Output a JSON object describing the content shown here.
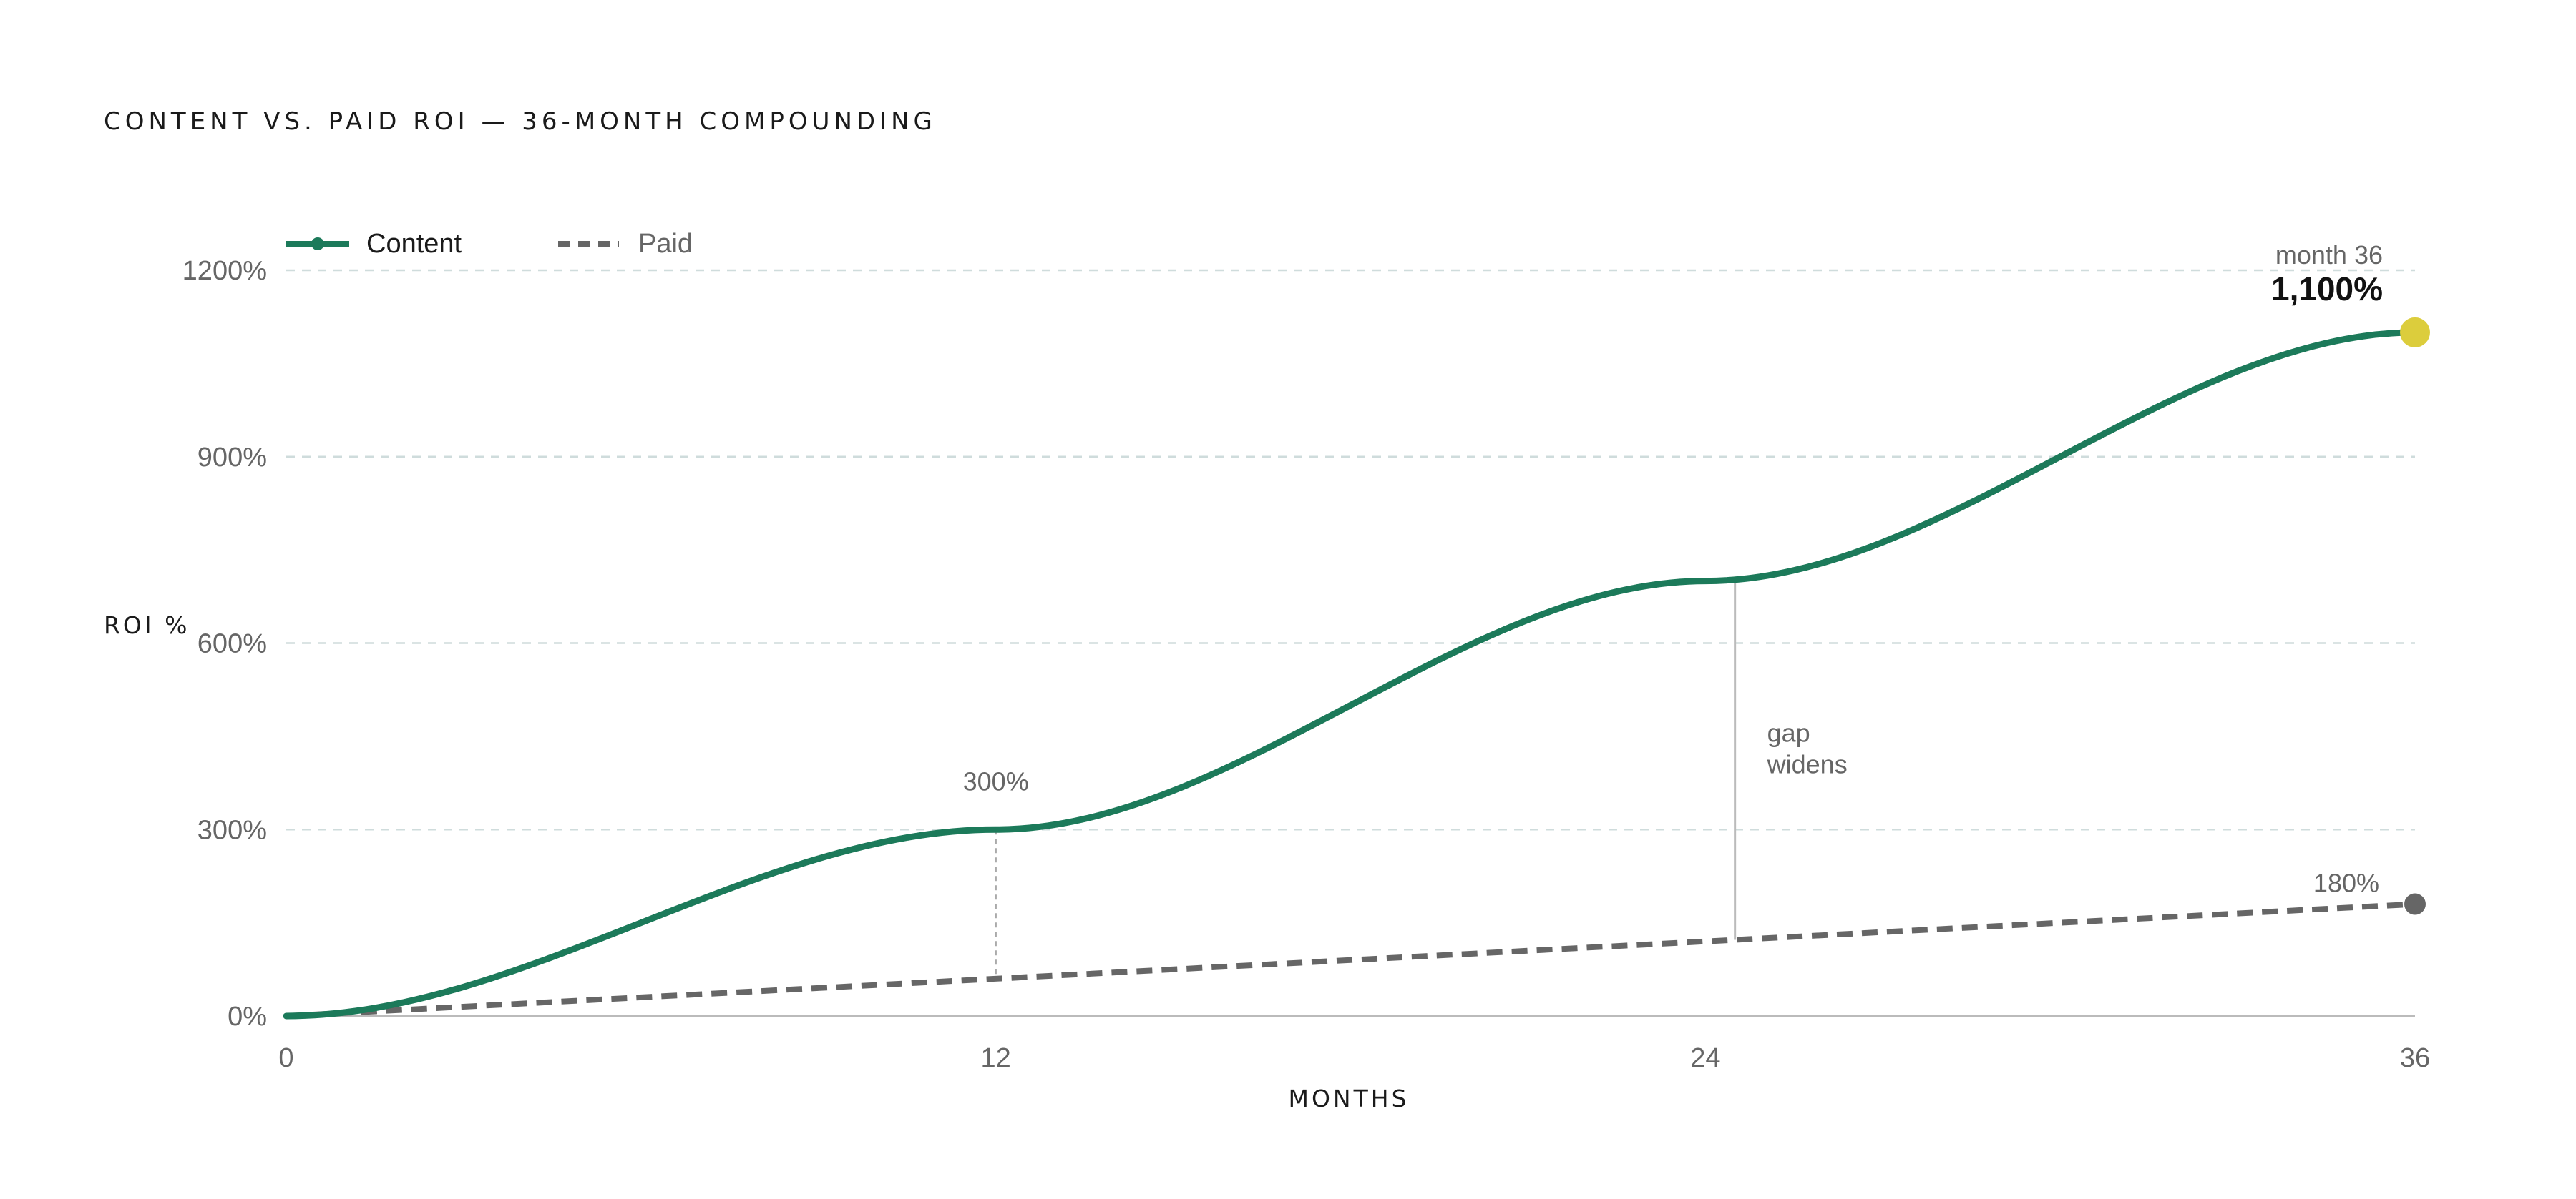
{
  "title": "CONTENT VS. PAID ROI — 36-MONTH COMPOUNDING",
  "colors": {
    "content": "#1c7a5a",
    "paid": "#666666",
    "highlight": "#dccd3c",
    "grid": "#cfdcdc",
    "baseline": "#bbbbbb",
    "text": "#1a1a1a",
    "muted": "#666666"
  },
  "chart_data": {
    "type": "line",
    "title": "CONTENT VS. PAID ROI — 36-MONTH COMPOUNDING",
    "xlabel": "MONTHS",
    "ylabel": "ROI %",
    "xlim": [
      0,
      36
    ],
    "ylim": [
      0,
      1200
    ],
    "x_ticks": [
      0,
      12,
      24,
      36
    ],
    "x_tick_labels": [
      "0",
      "12",
      "24",
      "36"
    ],
    "y_ticks": [
      0,
      300,
      600,
      900,
      1200
    ],
    "y_tick_labels": [
      "0%",
      "300%",
      "600%",
      "900%",
      "1200%"
    ],
    "grid": true,
    "legend_position": "top-left",
    "series": [
      {
        "name": "Content",
        "style": "solid",
        "x": [
          0,
          12,
          24,
          36
        ],
        "y": [
          0,
          300,
          700,
          1100
        ]
      },
      {
        "name": "Paid",
        "style": "dashed",
        "x": [
          0,
          36
        ],
        "y": [
          0,
          180
        ]
      }
    ],
    "annotations": [
      {
        "x": 12,
        "text": "300%"
      },
      {
        "x": 24.5,
        "lines": [
          "gap",
          "widens"
        ]
      },
      {
        "x": 36,
        "label": "month 36",
        "value": "1,100%"
      },
      {
        "x": 36,
        "text": "180%"
      }
    ]
  }
}
